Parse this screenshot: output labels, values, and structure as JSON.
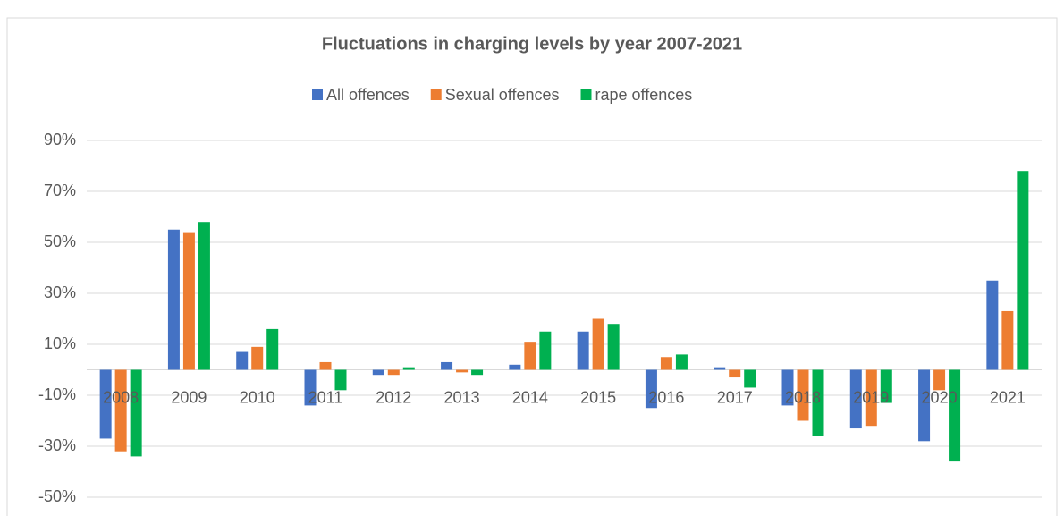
{
  "chart_data": {
    "type": "bar",
    "title": "Fluctuations in charging levels by year 2007-2021",
    "categories": [
      "2008",
      "2009",
      "2010",
      "2011",
      "2012",
      "2013",
      "2014",
      "2015",
      "2016",
      "2017",
      "2018",
      "2019",
      "2020",
      "2021"
    ],
    "series": [
      {
        "name": "All offences",
        "color": "#4472c4",
        "values": [
          -27,
          55,
          7,
          -14,
          -2,
          3,
          2,
          15,
          -15,
          1,
          -14,
          -23,
          -28,
          35
        ]
      },
      {
        "name": "Sexual offences",
        "color": "#ed7d31",
        "values": [
          -32,
          54,
          9,
          3,
          -2,
          -1,
          11,
          20,
          5,
          -3,
          -20,
          -22,
          -8,
          23
        ]
      },
      {
        "name": "rape offences",
        "color": "#00b050",
        "values": [
          -34,
          58,
          16,
          -8,
          1,
          -2,
          15,
          18,
          6,
          -7,
          -26,
          -13,
          -36,
          78
        ]
      }
    ],
    "ylim": [
      -50,
      90
    ],
    "yticks": [
      {
        "value": -50,
        "label": "-50%"
      },
      {
        "value": -30,
        "label": "-30%"
      },
      {
        "value": -10,
        "label": "-10%"
      },
      {
        "value": 10,
        "label": "10%"
      },
      {
        "value": 30,
        "label": "30%"
      },
      {
        "value": 50,
        "label": "50%"
      },
      {
        "value": 70,
        "label": "70%"
      },
      {
        "value": 90,
        "label": "90%"
      }
    ],
    "grid": true,
    "legend": "top"
  }
}
